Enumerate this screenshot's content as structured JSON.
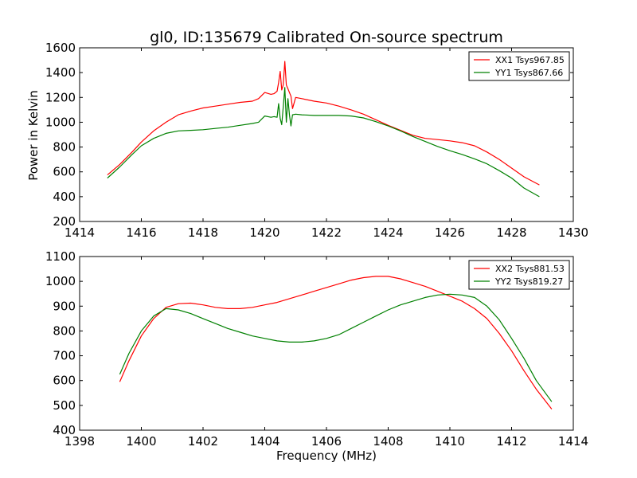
{
  "figure_title": "gl0, ID:135679 Calibrated On-source spectrum",
  "ylabel": "Power in Kelvin",
  "xlabel": "Frequency (MHz)",
  "colors": {
    "xx": "#ff0000",
    "yy": "#008000"
  },
  "chart_data": [
    {
      "type": "line",
      "title": "gl0, ID:135679 Calibrated On-source spectrum",
      "xlabel": "",
      "ylabel": "Power in Kelvin",
      "xlim": [
        1414,
        1430
      ],
      "ylim": [
        200,
        1600
      ],
      "xticks": [
        1414,
        1416,
        1418,
        1420,
        1422,
        1424,
        1426,
        1428,
        1430
      ],
      "yticks": [
        200,
        400,
        600,
        800,
        1000,
        1200,
        1400,
        1600
      ],
      "grid": false,
      "legend_position": "top-right",
      "series": [
        {
          "name": "XX1 Tsys967.85",
          "color": "#ff0000",
          "x": [
            1414.9,
            1415.3,
            1415.7,
            1416.0,
            1416.4,
            1416.8,
            1417.2,
            1417.6,
            1418.0,
            1418.4,
            1418.8,
            1419.2,
            1419.6,
            1419.8,
            1420.0,
            1420.2,
            1420.3,
            1420.4,
            1420.45,
            1420.5,
            1420.55,
            1420.6,
            1420.65,
            1420.7,
            1420.75,
            1420.8,
            1420.85,
            1420.9,
            1421.0,
            1421.2,
            1421.6,
            1422.0,
            1422.4,
            1422.8,
            1423.2,
            1423.6,
            1424.0,
            1424.4,
            1424.8,
            1425.2,
            1425.6,
            1426.0,
            1426.4,
            1426.8,
            1427.2,
            1427.6,
            1428.0,
            1428.4,
            1428.9
          ],
          "y": [
            575,
            660,
            760,
            840,
            930,
            1000,
            1060,
            1090,
            1115,
            1130,
            1145,
            1160,
            1170,
            1190,
            1240,
            1225,
            1230,
            1250,
            1320,
            1410,
            1260,
            1300,
            1490,
            1300,
            1270,
            1240,
            1210,
            1110,
            1200,
            1190,
            1170,
            1155,
            1130,
            1100,
            1065,
            1020,
            975,
            935,
            895,
            870,
            860,
            850,
            835,
            810,
            760,
            700,
            630,
            560,
            495
          ]
        },
        {
          "name": "YY1 Tsys867.66",
          "color": "#008000",
          "x": [
            1414.9,
            1415.3,
            1415.7,
            1416.0,
            1416.4,
            1416.8,
            1417.2,
            1417.6,
            1418.0,
            1418.4,
            1418.8,
            1419.2,
            1419.6,
            1419.8,
            1420.0,
            1420.2,
            1420.3,
            1420.4,
            1420.45,
            1420.5,
            1420.55,
            1420.6,
            1420.65,
            1420.7,
            1420.75,
            1420.8,
            1420.85,
            1420.9,
            1421.0,
            1421.2,
            1421.6,
            1422.0,
            1422.4,
            1422.8,
            1423.2,
            1423.6,
            1424.0,
            1424.4,
            1424.8,
            1425.2,
            1425.6,
            1426.0,
            1426.4,
            1426.8,
            1427.2,
            1427.6,
            1428.0,
            1428.4,
            1428.9
          ],
          "y": [
            550,
            640,
            740,
            810,
            870,
            910,
            930,
            935,
            940,
            950,
            960,
            975,
            990,
            1000,
            1050,
            1040,
            1045,
            1040,
            1150,
            1030,
            980,
            1120,
            1280,
            1000,
            1190,
            1060,
            970,
            1060,
            1065,
            1060,
            1055,
            1055,
            1055,
            1050,
            1035,
            1005,
            970,
            930,
            885,
            845,
            805,
            770,
            740,
            705,
            665,
            610,
            550,
            470,
            400
          ]
        }
      ]
    },
    {
      "type": "line",
      "title": "",
      "xlabel": "Frequency (MHz)",
      "ylabel": "",
      "xlim": [
        1398,
        1414
      ],
      "ylim": [
        400,
        1100
      ],
      "xticks": [
        1398,
        1400,
        1402,
        1404,
        1406,
        1408,
        1410,
        1412,
        1414
      ],
      "yticks": [
        400,
        500,
        600,
        700,
        800,
        900,
        1000,
        1100
      ],
      "grid": false,
      "legend_position": "top-right",
      "series": [
        {
          "name": "XX2 Tsys881.53",
          "color": "#ff0000",
          "x": [
            1399.3,
            1399.6,
            1400.0,
            1400.4,
            1400.8,
            1401.2,
            1401.6,
            1402.0,
            1402.4,
            1402.8,
            1403.2,
            1403.6,
            1404.0,
            1404.4,
            1404.8,
            1405.2,
            1405.6,
            1406.0,
            1406.4,
            1406.8,
            1407.2,
            1407.6,
            1408.0,
            1408.4,
            1408.8,
            1409.2,
            1409.6,
            1410.0,
            1410.4,
            1410.8,
            1411.2,
            1411.6,
            1412.0,
            1412.4,
            1412.8,
            1413.3
          ],
          "y": [
            595,
            680,
            780,
            850,
            895,
            910,
            912,
            905,
            895,
            890,
            890,
            895,
            905,
            915,
            930,
            945,
            960,
            975,
            990,
            1005,
            1015,
            1020,
            1020,
            1010,
            995,
            980,
            960,
            940,
            920,
            890,
            850,
            790,
            720,
            640,
            565,
            485
          ]
        },
        {
          "name": "YY2 Tsys819.27",
          "color": "#008000",
          "x": [
            1399.3,
            1399.6,
            1400.0,
            1400.4,
            1400.8,
            1401.2,
            1401.6,
            1402.0,
            1402.4,
            1402.8,
            1403.2,
            1403.6,
            1404.0,
            1404.4,
            1404.8,
            1405.2,
            1405.6,
            1406.0,
            1406.4,
            1406.8,
            1407.2,
            1407.6,
            1408.0,
            1408.4,
            1408.8,
            1409.2,
            1409.6,
            1410.0,
            1410.4,
            1410.8,
            1411.2,
            1411.6,
            1412.0,
            1412.4,
            1412.8,
            1413.3
          ],
          "y": [
            625,
            710,
            800,
            860,
            890,
            885,
            870,
            850,
            830,
            810,
            795,
            780,
            770,
            760,
            755,
            755,
            760,
            770,
            785,
            810,
            835,
            860,
            885,
            905,
            920,
            935,
            945,
            948,
            945,
            935,
            900,
            845,
            770,
            690,
            600,
            515
          ]
        }
      ]
    }
  ]
}
